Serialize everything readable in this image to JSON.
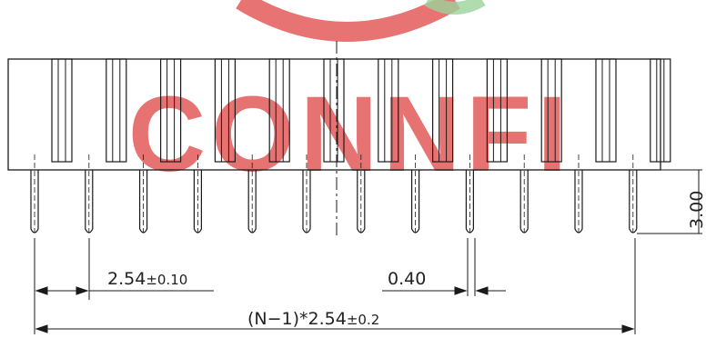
{
  "watermark": {
    "text": "CONNFI",
    "color": "#e35a5a",
    "accent": "#9bd39b"
  },
  "drawing": {
    "pin_count": 12,
    "line_color": "#1a1a1a"
  },
  "dimensions": {
    "pitch": {
      "value": "2.54",
      "tol": "±0.10"
    },
    "pin_width": {
      "value": "0.40"
    },
    "overall": {
      "value": "(N−1)*2.54",
      "tol": "±0.2"
    },
    "pin_length": {
      "value": "3.00"
    }
  }
}
